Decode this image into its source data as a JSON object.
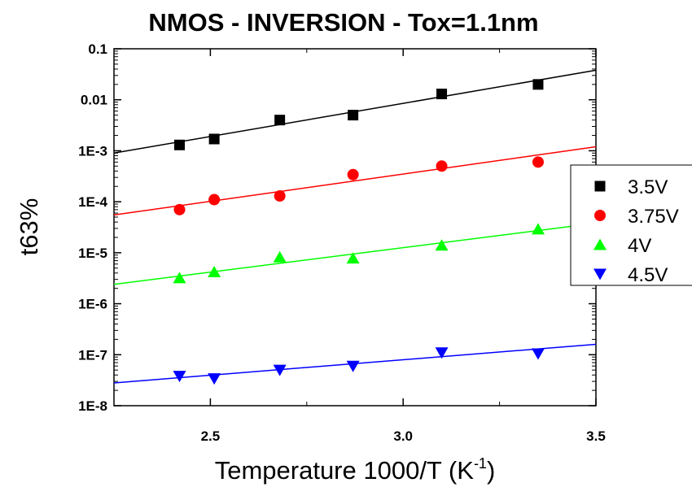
{
  "chart_data": {
    "type": "scatter",
    "title": "NMOS - INVERSION - Tox=1.1nm",
    "xlabel": "Temperature 1000/T (K",
    "xlabel_superscript": "-1",
    "xlabel_suffix": ")",
    "ylabel": "t63%",
    "xlim": [
      2.25,
      3.5
    ],
    "ylim": [
      1e-08,
      0.1
    ],
    "yscale": "log",
    "grid": false,
    "legend_position": "right",
    "x_ticks": [
      {
        "value": 2.5,
        "label": "2.5"
      },
      {
        "value": 3.0,
        "label": "3.0"
      },
      {
        "value": 3.5,
        "label": "3.5"
      }
    ],
    "y_ticks": [
      {
        "value": 0.1,
        "label": "0.1"
      },
      {
        "value": 0.01,
        "label": "0.01"
      },
      {
        "value": 0.001,
        "label": "1E-3"
      },
      {
        "value": 0.0001,
        "label": "1E-4"
      },
      {
        "value": 1e-05,
        "label": "1E-5"
      },
      {
        "value": 1e-06,
        "label": "1E-6"
      },
      {
        "value": 1e-07,
        "label": "1E-7"
      },
      {
        "value": 1e-08,
        "label": "1E-8"
      }
    ],
    "x": [
      2.42,
      2.51,
      2.68,
      2.87,
      3.1,
      3.35
    ],
    "series": [
      {
        "name": "3.5V",
        "color": "#000000",
        "marker": "square",
        "values": [
          0.0013,
          0.0017,
          0.004,
          0.005,
          0.013,
          0.02
        ],
        "fit": {
          "x": [
            2.25,
            3.5
          ],
          "y": [
            0.0009,
            0.038
          ]
        }
      },
      {
        "name": "3.75V",
        "color": "#ff0000",
        "marker": "circle",
        "values": [
          7e-05,
          0.00011,
          0.00013,
          0.00034,
          0.0005,
          0.0006
        ],
        "fit": {
          "x": [
            2.25,
            3.5
          ],
          "y": [
            5.5e-05,
            0.0012
          ]
        }
      },
      {
        "name": "4V",
        "color": "#00ff00",
        "marker": "triangle-up",
        "values": [
          3.2e-06,
          4.2e-06,
          8.2e-06,
          7.8e-06,
          1.4e-05,
          2.9e-05
        ],
        "fit": {
          "x": [
            2.25,
            3.5
          ],
          "y": [
            2.4e-06,
            3.8e-05
          ]
        }
      },
      {
        "name": "4.5V",
        "color": "#0000ff",
        "marker": "triangle-down",
        "values": [
          3.8e-08,
          3.4e-08,
          5e-08,
          6e-08,
          1.1e-07,
          1.05e-07
        ],
        "fit": {
          "x": [
            2.25,
            3.5
          ],
          "y": [
            2.8e-08,
            1.6e-07
          ]
        }
      }
    ]
  }
}
